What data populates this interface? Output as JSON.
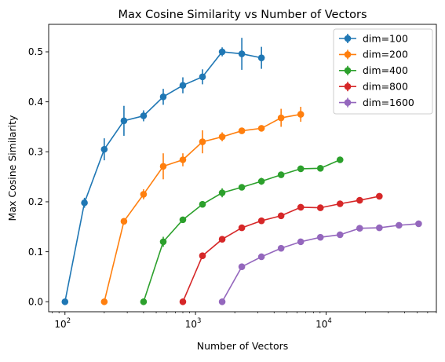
{
  "chart_data": {
    "type": "line",
    "title": "Max Cosine Similarity vs Number of Vectors",
    "xlabel": "Number of Vectors",
    "ylabel": "Max Cosine Similarity",
    "xscale": "log",
    "xlim": [
      75,
      70000
    ],
    "ylim": [
      -0.02,
      0.555
    ],
    "yticks": [
      0.0,
      0.1,
      0.2,
      0.3,
      0.4,
      0.5
    ],
    "ytick_labels": [
      "0.0",
      "0.1",
      "0.2",
      "0.3",
      "0.4",
      "0.5"
    ],
    "xticks": [
      100,
      1000,
      10000
    ],
    "xtick_labels": [
      {
        "base": "10",
        "exp": "2"
      },
      {
        "base": "10",
        "exp": "3"
      },
      {
        "base": "10",
        "exp": "4"
      }
    ],
    "grid": false,
    "legend_position": "top-right",
    "series": [
      {
        "name": "dim=100",
        "color": "#1f77b4",
        "x": [
          100,
          141,
          200,
          283,
          400,
          566,
          800,
          1131,
          1600,
          2263,
          3200
        ],
        "y": [
          0.0,
          0.198,
          0.305,
          0.362,
          0.372,
          0.41,
          0.433,
          0.45,
          0.5,
          0.496,
          0.488
        ],
        "err": [
          0.0,
          0.01,
          0.022,
          0.03,
          0.011,
          0.016,
          0.016,
          0.015,
          0.009,
          0.032,
          0.022
        ]
      },
      {
        "name": "dim=200",
        "color": "#ff7f0e",
        "x": [
          200,
          283,
          400,
          566,
          800,
          1131,
          1600,
          2263,
          3200,
          4525,
          6400
        ],
        "y": [
          0.0,
          0.161,
          0.215,
          0.271,
          0.284,
          0.32,
          0.33,
          0.342,
          0.347,
          0.368,
          0.375
        ],
        "err": [
          0.0,
          0.005,
          0.01,
          0.026,
          0.013,
          0.023,
          0.009,
          0.006,
          0.004,
          0.018,
          0.015
        ]
      },
      {
        "name": "dim=400",
        "color": "#2ca02c",
        "x": [
          400,
          566,
          800,
          1131,
          1600,
          2263,
          3200,
          4525,
          6400,
          9051,
          12800
        ],
        "y": [
          0.0,
          0.12,
          0.164,
          0.195,
          0.218,
          0.229,
          0.241,
          0.254,
          0.266,
          0.267,
          0.284
        ],
        "err": [
          0.0,
          0.01,
          0.005,
          0.005,
          0.009,
          0.005,
          0.007,
          0.006,
          0.004,
          0.004,
          0.003
        ]
      },
      {
        "name": "dim=800",
        "color": "#d62728",
        "x": [
          800,
          1131,
          1600,
          2263,
          3200,
          4525,
          6400,
          9051,
          12800,
          18102,
          25600
        ],
        "y": [
          0.0,
          0.092,
          0.125,
          0.148,
          0.162,
          0.172,
          0.189,
          0.188,
          0.196,
          0.203,
          0.211
        ],
        "err": [
          0.0,
          0.004,
          0.004,
          0.004,
          0.004,
          0.004,
          0.006,
          0.003,
          0.003,
          0.006,
          0.003
        ]
      },
      {
        "name": "dim=1600",
        "color": "#9467bd",
        "x": [
          1600,
          2263,
          3200,
          4525,
          6400,
          9051,
          12800,
          18102,
          25600,
          36204,
          51200
        ],
        "y": [
          0.0,
          0.07,
          0.09,
          0.107,
          0.12,
          0.129,
          0.134,
          0.147,
          0.148,
          0.153,
          0.156
        ],
        "err": [
          0.0,
          0.004,
          0.003,
          0.003,
          0.003,
          0.004,
          0.004,
          0.003,
          0.004,
          0.002,
          0.003
        ]
      }
    ]
  }
}
